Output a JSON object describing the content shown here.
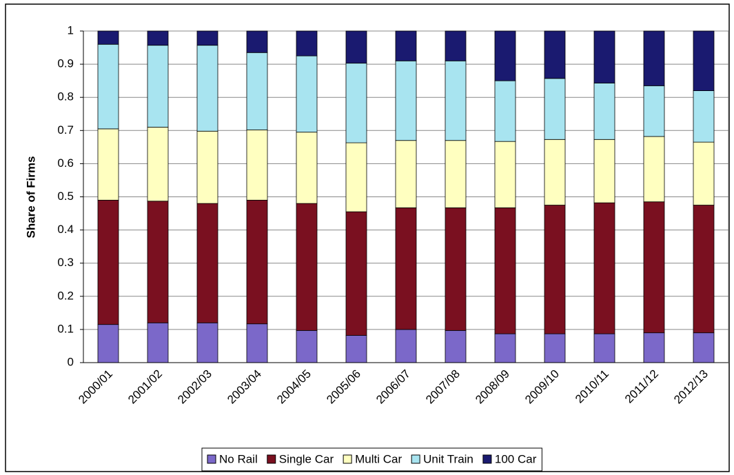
{
  "chart_data": {
    "type": "stacked_bar",
    "y_label": "Share of Firms",
    "categories": [
      "2000/01",
      "2001/02",
      "2002/03",
      "2003/04",
      "2004/05",
      "2005/06",
      "2006/07",
      "2007/08",
      "2008/09",
      "2009/10",
      "2010/11",
      "2011/12",
      "2012/13"
    ],
    "series": [
      {
        "name": "No Rail",
        "color": "#7b68c9",
        "values": [
          0.115,
          0.12,
          0.12,
          0.117,
          0.097,
          0.082,
          0.1,
          0.097,
          0.087,
          0.087,
          0.087,
          0.09,
          0.09
        ]
      },
      {
        "name": "Single Car",
        "color": "#7a1020",
        "values": [
          0.375,
          0.367,
          0.36,
          0.373,
          0.383,
          0.373,
          0.367,
          0.37,
          0.38,
          0.388,
          0.395,
          0.395,
          0.385
        ]
      },
      {
        "name": "Multi Car",
        "color": "#ffffc0",
        "values": [
          0.215,
          0.223,
          0.218,
          0.212,
          0.215,
          0.208,
          0.203,
          0.203,
          0.2,
          0.198,
          0.191,
          0.197,
          0.19
        ]
      },
      {
        "name": "Unit Train",
        "color": "#a8e4f0",
        "values": [
          0.255,
          0.247,
          0.259,
          0.233,
          0.23,
          0.24,
          0.24,
          0.24,
          0.183,
          0.184,
          0.17,
          0.153,
          0.155
        ]
      },
      {
        "name": "100 Car",
        "color": "#1a1a70",
        "values": [
          0.04,
          0.043,
          0.043,
          0.065,
          0.075,
          0.097,
          0.09,
          0.09,
          0.15,
          0.143,
          0.157,
          0.165,
          0.18
        ]
      }
    ],
    "ylim": [
      0,
      1
    ],
    "yticks": [
      0,
      0.1,
      0.2,
      0.3,
      0.4,
      0.5,
      0.6,
      0.7,
      0.8,
      0.9,
      1
    ],
    "grid": true,
    "legend": "bottom"
  }
}
